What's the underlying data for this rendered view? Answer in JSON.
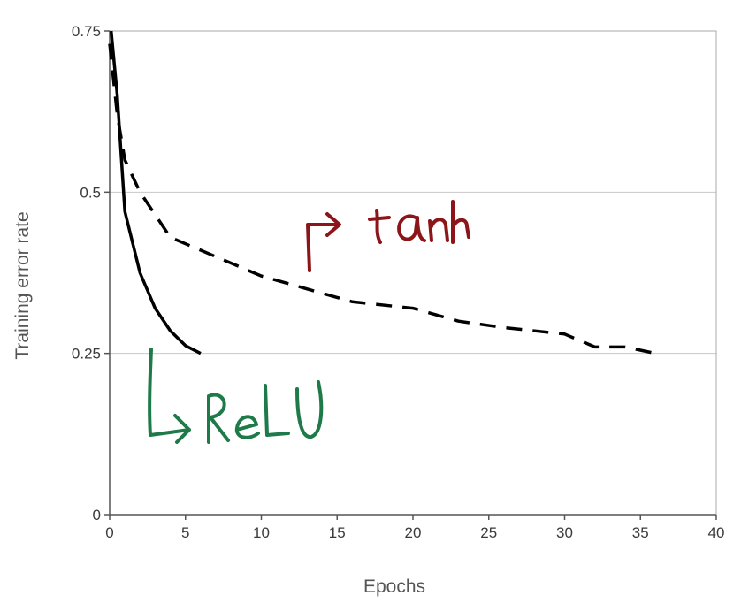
{
  "chart_data": {
    "type": "line",
    "xlabel": "Epochs",
    "ylabel": "Training error rate",
    "xlim": [
      0,
      40
    ],
    "ylim": [
      0,
      0.75
    ],
    "x_ticks": [
      0,
      5,
      10,
      15,
      20,
      25,
      30,
      35,
      40
    ],
    "y_ticks": [
      0,
      0.25,
      0.5,
      0.75
    ],
    "x_tick_labels": [
      "0",
      "5",
      "10",
      "15",
      "20",
      "25",
      "30",
      "35",
      "40"
    ],
    "y_tick_labels": [
      "0",
      "0.25",
      "0.5",
      "0.75"
    ],
    "grid": "horizontal at y ticks",
    "series": [
      {
        "name": "ReLU",
        "style": "solid",
        "color": "#000000",
        "x": [
          0.1,
          0.5,
          1,
          2,
          3,
          4,
          5,
          6
        ],
        "y": [
          0.75,
          0.65,
          0.47,
          0.375,
          0.32,
          0.285,
          0.262,
          0.25
        ]
      },
      {
        "name": "tanh",
        "style": "dashed",
        "color": "#000000",
        "x": [
          0,
          0.5,
          1,
          2,
          4,
          7,
          10,
          16,
          20,
          23,
          26,
          30,
          32,
          34,
          36
        ],
        "y": [
          0.73,
          0.62,
          0.55,
          0.5,
          0.43,
          0.4,
          0.37,
          0.33,
          0.32,
          0.3,
          0.29,
          0.28,
          0.26,
          0.26,
          0.25
        ]
      }
    ],
    "annotations": [
      {
        "text": "tanh",
        "color": "#8b1518",
        "style": "handwritten"
      },
      {
        "text": "ReLU",
        "color": "#1f7a4a",
        "style": "handwritten"
      }
    ]
  }
}
